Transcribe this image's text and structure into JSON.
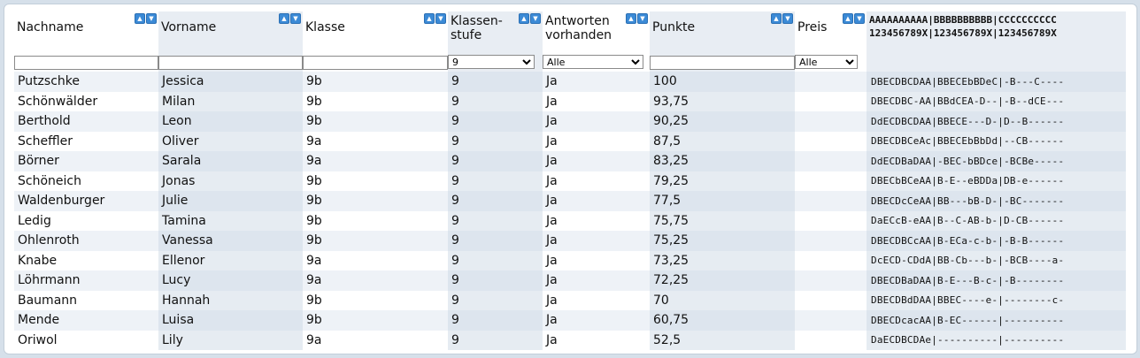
{
  "columns": [
    {
      "label": "Nachname",
      "sortable": true
    },
    {
      "label": "Vorname",
      "sortable": true
    },
    {
      "label": "Klasse",
      "sortable": true
    },
    {
      "label": "Klassen-\nstufe",
      "sortable": true
    },
    {
      "label": "Antworten\nvorhanden",
      "sortable": true
    },
    {
      "label": "Punkte",
      "sortable": true
    },
    {
      "label": "Preis",
      "sortable": true
    },
    {
      "label": "AAAAAAAAAA|BBBBBBBBBB|CCCCCCCCCC\n123456789X|123456789X|123456789X",
      "sortable": false
    }
  ],
  "filters": {
    "nachname": "",
    "vorname": "",
    "klasse": "",
    "klassenstufe": "9",
    "antworten": "Alle",
    "punkte": "",
    "preis": "Alle"
  },
  "rows": [
    {
      "nachname": "Putzschke",
      "vorname": "Jessica",
      "klasse": "9b",
      "stufe": "9",
      "antworten": "Ja",
      "punkte": "100",
      "preis": "",
      "code": "DBECDBCDAA|BBECEbBDeC|-B---C----"
    },
    {
      "nachname": "Schönwälder",
      "vorname": "Milan",
      "klasse": "9b",
      "stufe": "9",
      "antworten": "Ja",
      "punkte": "93,75",
      "preis": "",
      "code": "DBECDBC-AA|BBdCEA-D--|-B--dCE---"
    },
    {
      "nachname": "Berthold",
      "vorname": "Leon",
      "klasse": "9b",
      "stufe": "9",
      "antworten": "Ja",
      "punkte": "90,25",
      "preis": "",
      "code": "DdECDBCDAA|BBECE---D-|D--B------"
    },
    {
      "nachname": "Scheffler",
      "vorname": "Oliver",
      "klasse": "9a",
      "stufe": "9",
      "antworten": "Ja",
      "punkte": "87,5",
      "preis": "",
      "code": "DBECDBCeAc|BBECEbBbDd|--CB------"
    },
    {
      "nachname": "Börner",
      "vorname": "Sarala",
      "klasse": "9a",
      "stufe": "9",
      "antworten": "Ja",
      "punkte": "83,25",
      "preis": "",
      "code": "DdECDBaDAA|-BEC-bBDce|-BCBe-----"
    },
    {
      "nachname": "Schöneich",
      "vorname": "Jonas",
      "klasse": "9b",
      "stufe": "9",
      "antworten": "Ja",
      "punkte": "79,25",
      "preis": "",
      "code": "DBECbBCeAA|B-E--eBDDa|DB-e------"
    },
    {
      "nachname": "Waldenburger",
      "vorname": "Julie",
      "klasse": "9b",
      "stufe": "9",
      "antworten": "Ja",
      "punkte": "77,5",
      "preis": "",
      "code": "DBECDcCeAA|BB---bB-D-|-BC-------"
    },
    {
      "nachname": "Ledig",
      "vorname": "Tamina",
      "klasse": "9b",
      "stufe": "9",
      "antworten": "Ja",
      "punkte": "75,75",
      "preis": "",
      "code": "DaECcB-eAA|B--C-AB-b-|D-CB------"
    },
    {
      "nachname": "Ohlenroth",
      "vorname": "Vanessa",
      "klasse": "9b",
      "stufe": "9",
      "antworten": "Ja",
      "punkte": "75,25",
      "preis": "",
      "code": "DBECDBCcAA|B-ECa-c-b-|-B-B------"
    },
    {
      "nachname": "Knabe",
      "vorname": "Ellenor",
      "klasse": "9a",
      "stufe": "9",
      "antworten": "Ja",
      "punkte": "73,25",
      "preis": "",
      "code": "DcECD-CDdA|BB-Cb---b-|-BCB----a-"
    },
    {
      "nachname": "Löhrmann",
      "vorname": "Lucy",
      "klasse": "9a",
      "stufe": "9",
      "antworten": "Ja",
      "punkte": "72,25",
      "preis": "",
      "code": "DBECDBaDAA|B-E---B-c-|-B--------"
    },
    {
      "nachname": "Baumann",
      "vorname": "Hannah",
      "klasse": "9b",
      "stufe": "9",
      "antworten": "Ja",
      "punkte": "70",
      "preis": "",
      "code": "DBECDBdDAA|BBEC----e-|--------c-"
    },
    {
      "nachname": "Mende",
      "vorname": "Luisa",
      "klasse": "9b",
      "stufe": "9",
      "antworten": "Ja",
      "punkte": "60,75",
      "preis": "",
      "code": "DBECDcacAA|B-EC------|----------"
    },
    {
      "nachname": "Oriwol",
      "vorname": "Lily",
      "klasse": "9a",
      "stufe": "9",
      "antworten": "Ja",
      "punkte": "52,5",
      "preis": "",
      "code": "DaECDBCDAe|----------|----------"
    }
  ]
}
